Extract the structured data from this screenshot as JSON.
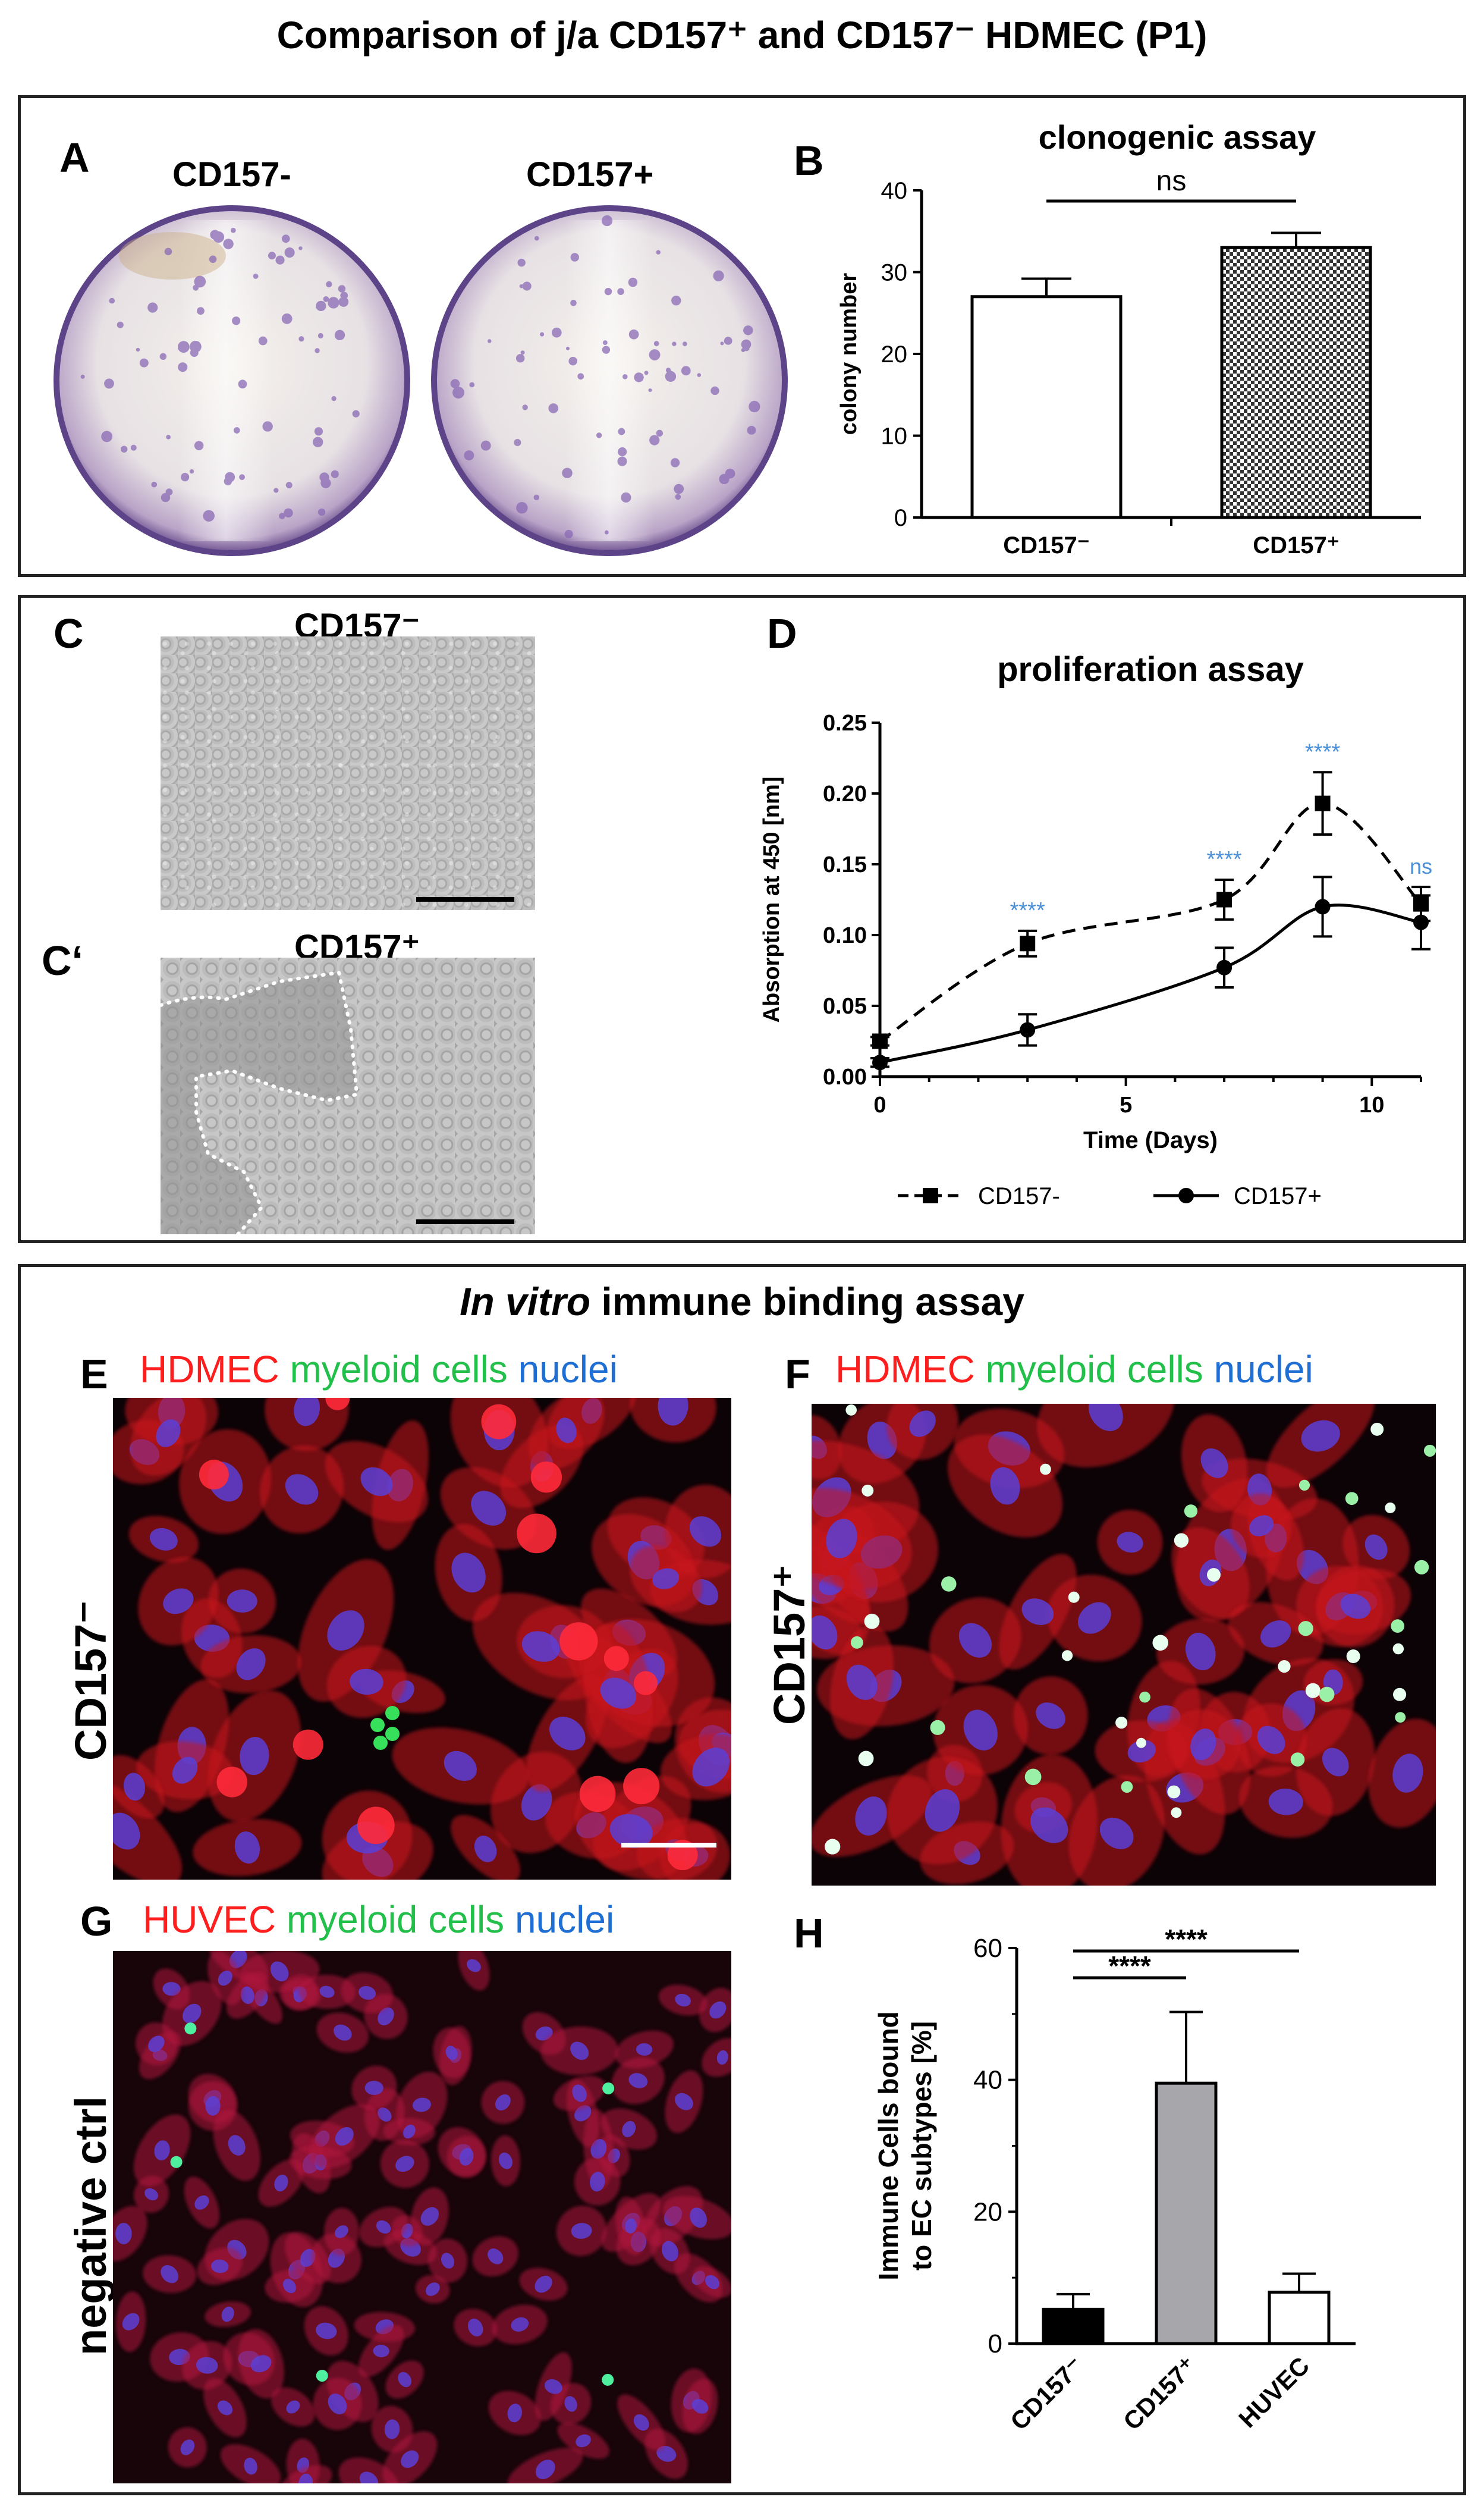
{
  "figure_title": "Comparison of j/a CD157⁺ and CD157⁻ HDMEC (P1)",
  "panel_a": {
    "label": "A",
    "dish_left_label": "CD157-",
    "dish_right_label": "CD157+"
  },
  "panel_c": {
    "label": "C",
    "image_label": "CD157⁻"
  },
  "panel_c2": {
    "label": "C‘",
    "image_label": "CD157⁺"
  },
  "section3_title_italic": "In vitro",
  "section3_title_rest": " immune binding assay",
  "panel_e": {
    "label": "E",
    "stain_1": "HDMEC",
    "stain_2": "myeloid",
    "stain_3": "cells",
    "stain_4": "nuclei",
    "side_label": "CD157⁻"
  },
  "panel_f": {
    "label": "F",
    "stain_1": "HDMEC",
    "stain_2": "myeloid",
    "stain_3": "cells",
    "stain_4": "nuclei",
    "side_label": "CD157⁺"
  },
  "panel_g": {
    "label": "G",
    "stain_1": "HUVEC",
    "stain_2": "myeloid",
    "stain_3": "cells",
    "stain_4": "nuclei",
    "side_label": "negative ctrl"
  },
  "colors": {
    "stain_red": "#ff1e1e",
    "stain_green": "#22c04a",
    "stain_blue": "#1f6ed4",
    "significance_blue": "#4a90d9",
    "bar_gray": "#a7a7ab"
  },
  "chart_data": [
    {
      "id": "B",
      "panel_label": "B",
      "type": "bar",
      "title": "clonogenic assay",
      "ylabel": "colony number",
      "xlabel": "",
      "categories": [
        "CD157⁻",
        "CD157⁺"
      ],
      "values": [
        27,
        33
      ],
      "errors": [
        2.2,
        1.8
      ],
      "fills": [
        "white",
        "checker"
      ],
      "ylim": [
        0,
        40
      ],
      "yticks": [
        "0",
        "10",
        "20",
        "30",
        "40"
      ],
      "significance": [
        {
          "between": [
            0,
            1
          ],
          "label": "ns"
        }
      ]
    },
    {
      "id": "D",
      "panel_label": "D",
      "type": "line",
      "title": "proliferation assay",
      "xlabel": "Time (Days)",
      "ylabel": "Absorption at 450 [nm]",
      "xlim": [
        0,
        11
      ],
      "ylim": [
        0,
        0.25
      ],
      "xticks": [
        "0",
        "5",
        "10"
      ],
      "yticks": [
        "0.00",
        "0.05",
        "0.10",
        "0.15",
        "0.20",
        "0.25"
      ],
      "legend_position": "bottom",
      "series": [
        {
          "name": "CD157-",
          "marker": "square",
          "dash": "dashed",
          "x": [
            0,
            3,
            7,
            9,
            11
          ],
          "y": [
            0.025,
            0.094,
            0.125,
            0.193,
            0.122
          ],
          "err": [
            0.003,
            0.009,
            0.014,
            0.022,
            0.012
          ]
        },
        {
          "name": "CD157+",
          "marker": "circle",
          "dash": "solid",
          "x": [
            0,
            3,
            7,
            9,
            11
          ],
          "y": [
            0.01,
            0.033,
            0.077,
            0.12,
            0.109
          ],
          "err": [
            0.003,
            0.011,
            0.014,
            0.021,
            0.019
          ]
        }
      ],
      "annotations": [
        {
          "x": 3,
          "text": "****"
        },
        {
          "x": 7,
          "text": "****"
        },
        {
          "x": 9,
          "text": "****"
        },
        {
          "x": 11,
          "text": "ns"
        }
      ]
    },
    {
      "id": "H",
      "panel_label": "H",
      "type": "bar",
      "title": "",
      "ylabel": "Immune Cells bound to EC subtypes [%]",
      "ylabel_lines": [
        "Immune Cells bound",
        "to EC subtypes [%]"
      ],
      "categories": [
        "CD157⁻",
        "CD157⁺",
        "HUVEC"
      ],
      "values": [
        5.2,
        39.5,
        7.8
      ],
      "errors": [
        2.3,
        10.8,
        2.8
      ],
      "fills": [
        "#000000",
        "#a7a7ab",
        "#ffffff"
      ],
      "ylim": [
        0,
        60
      ],
      "yticks": [
        "0",
        "20",
        "40",
        "60"
      ],
      "significance": [
        {
          "between": [
            0,
            1
          ],
          "label": "****"
        },
        {
          "between": [
            0,
            2
          ],
          "label": "****"
        }
      ]
    }
  ]
}
